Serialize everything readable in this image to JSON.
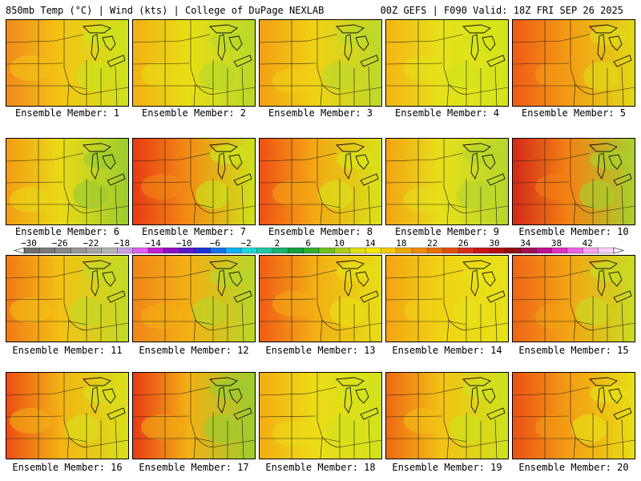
{
  "header": {
    "left": "850mb Temp (°C) | Wind (kts) | College of DuPage NEXLAB",
    "right": "00Z GEFS | F090 Valid: 18Z FRI SEP 26 2025"
  },
  "caption_prefix": "Ensemble Member: ",
  "members": [
    {
      "id": "1",
      "label": "Ensemble Member: 1",
      "west": "#f08a1a",
      "mid": "#f3c514",
      "east": "#cde21c"
    },
    {
      "id": "2",
      "label": "Ensemble Member: 2",
      "west": "#f3b014",
      "mid": "#e8de14",
      "east": "#b9d82a"
    },
    {
      "id": "3",
      "label": "Ensemble Member: 3",
      "west": "#f3a014",
      "mid": "#f0d214",
      "east": "#bcd82a"
    },
    {
      "id": "4",
      "label": "Ensemble Member: 4",
      "west": "#f5b514",
      "mid": "#e6e21a",
      "east": "#d4e41a"
    },
    {
      "id": "5",
      "label": "Ensemble Member: 5",
      "west": "#f05a14",
      "mid": "#f39c14",
      "east": "#e0d818"
    },
    {
      "id": "6",
      "label": "Ensemble Member: 6",
      "west": "#f39c14",
      "mid": "#e9db16",
      "east": "#9ccc2e"
    },
    {
      "id": "7",
      "label": "Ensemble Member: 7",
      "west": "#e83a14",
      "mid": "#f38c14",
      "east": "#cde21c"
    },
    {
      "id": "8",
      "label": "Ensemble Member: 8",
      "west": "#f05014",
      "mid": "#f3a814",
      "east": "#d8e21a"
    },
    {
      "id": "9",
      "label": "Ensemble Member: 9",
      "west": "#f3a514",
      "mid": "#e6e01a",
      "east": "#b6d62c"
    },
    {
      "id": "10",
      "label": "Ensemble Member: 10",
      "west": "#d42818",
      "mid": "#f38214",
      "east": "#a8d02e"
    },
    {
      "id": "11",
      "label": "Ensemble Member: 11",
      "west": "#f07a16",
      "mid": "#f3c214",
      "east": "#c2da26"
    },
    {
      "id": "12",
      "label": "Ensemble Member: 12",
      "west": "#f0861a",
      "mid": "#f3b014",
      "east": "#b8d62a"
    },
    {
      "id": "13",
      "label": "Ensemble Member: 13",
      "west": "#f05c14",
      "mid": "#f3ae14",
      "east": "#e6de16"
    },
    {
      "id": "14",
      "label": "Ensemble Member: 14",
      "west": "#f3a414",
      "mid": "#f0d414",
      "east": "#e6e218"
    },
    {
      "id": "15",
      "label": "Ensemble Member: 15",
      "west": "#f06416",
      "mid": "#f3a414",
      "east": "#c8dc24"
    },
    {
      "id": "16",
      "label": "Ensemble Member: 16",
      "west": "#ec4e14",
      "mid": "#f3b414",
      "east": "#d8e01a"
    },
    {
      "id": "17",
      "label": "Ensemble Member: 17",
      "west": "#e83a14",
      "mid": "#f3b014",
      "east": "#9ccc30"
    },
    {
      "id": "18",
      "label": "Ensemble Member: 18",
      "west": "#f3ac14",
      "mid": "#ecdc16",
      "east": "#d2e21c"
    },
    {
      "id": "19",
      "label": "Ensemble Member: 19",
      "west": "#ee6814",
      "mid": "#f3c214",
      "east": "#cde21c"
    },
    {
      "id": "20",
      "label": "Ensemble Member: 20",
      "west": "#ec5014",
      "mid": "#f39c14",
      "east": "#e8de16"
    }
  ],
  "colorbar": {
    "labels": [
      "−30",
      "−26",
      "−22",
      "−18",
      "−14",
      "−10",
      "−6",
      "−2",
      "2",
      "6",
      "10",
      "14",
      "18",
      "22",
      "26",
      "30",
      "34",
      "38",
      "42"
    ],
    "colors": [
      "#6e6e6e",
      "#7a7a7a",
      "#888888",
      "#969696",
      "#a4a4a4",
      "#b4b4b4",
      "#c8a0e6",
      "#e060f0",
      "#c020d0",
      "#9010c0",
      "#5a18c8",
      "#2030d8",
      "#1870e8",
      "#10b0f0",
      "#20d8d8",
      "#20c8a0",
      "#18b070",
      "#10a040",
      "#30b030",
      "#70c020",
      "#a8d020",
      "#e0e018",
      "#f8e800",
      "#f8c800",
      "#f0a800",
      "#f08c00",
      "#e87000",
      "#e05000",
      "#d83018",
      "#c81818",
      "#b01010",
      "#901010",
      "#a01050",
      "#c01090",
      "#e030c0",
      "#f060e0",
      "#f8a0f0",
      "#fad0f8"
    ]
  }
}
